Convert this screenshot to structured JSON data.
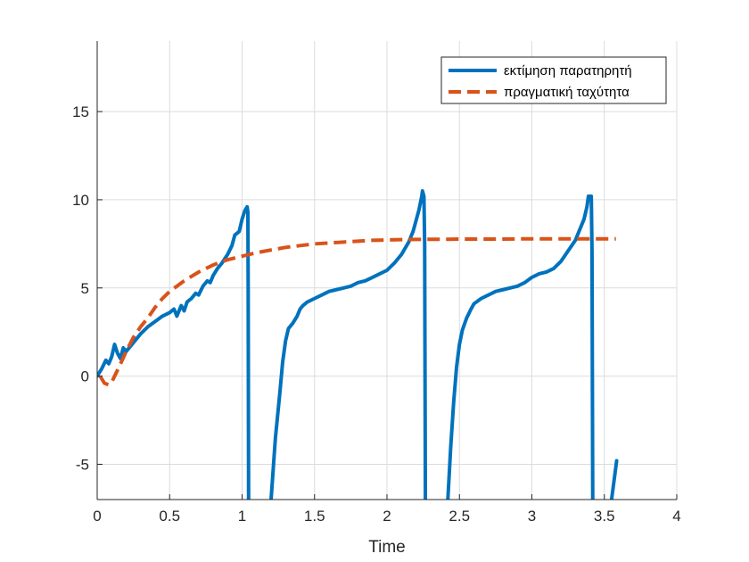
{
  "chart_data": {
    "type": "line",
    "title": "",
    "xlabel": "Time",
    "ylabel": "",
    "xlim": [
      0,
      4
    ],
    "ylim": [
      -7,
      19
    ],
    "xticks": [
      0,
      0.5,
      1,
      1.5,
      2,
      2.5,
      3,
      3.5,
      4
    ],
    "xtick_labels": [
      "0",
      "0.5",
      "1",
      "1.5",
      "2",
      "2.5",
      "3",
      "3.5",
      "4"
    ],
    "yticks": [
      -5,
      0,
      5,
      10,
      15
    ],
    "ytick_labels": [
      "-5",
      "0",
      "5",
      "10",
      "15"
    ],
    "grid": true,
    "legend_position": "top-right",
    "colors": {
      "estimate": "#0072BD",
      "actual": "#D95319",
      "grid": "#dcdcdc",
      "axis": "#262626"
    },
    "series": [
      {
        "name": "εκτίμηση παρατηρητή",
        "style": "solid",
        "color": "#0072BD",
        "segments": [
          [
            [
              0.0,
              0.0
            ],
            [
              0.03,
              0.4
            ],
            [
              0.06,
              0.9
            ],
            [
              0.08,
              0.7
            ],
            [
              0.1,
              1.1
            ],
            [
              0.12,
              1.8
            ],
            [
              0.14,
              1.3
            ],
            [
              0.16,
              1.0
            ],
            [
              0.18,
              1.6
            ],
            [
              0.2,
              1.4
            ],
            [
              0.25,
              1.9
            ],
            [
              0.3,
              2.4
            ],
            [
              0.35,
              2.8
            ],
            [
              0.4,
              3.1
            ],
            [
              0.45,
              3.4
            ],
            [
              0.5,
              3.6
            ],
            [
              0.53,
              3.8
            ],
            [
              0.55,
              3.4
            ],
            [
              0.58,
              4.0
            ],
            [
              0.6,
              3.7
            ],
            [
              0.62,
              4.2
            ],
            [
              0.65,
              4.4
            ],
            [
              0.68,
              4.7
            ],
            [
              0.7,
              4.6
            ],
            [
              0.73,
              5.1
            ],
            [
              0.76,
              5.4
            ],
            [
              0.78,
              5.3
            ],
            [
              0.8,
              5.7
            ],
            [
              0.83,
              6.1
            ],
            [
              0.86,
              6.4
            ],
            [
              0.9,
              6.9
            ],
            [
              0.93,
              7.4
            ],
            [
              0.95,
              8.0
            ],
            [
              0.98,
              8.2
            ],
            [
              1.0,
              8.9
            ],
            [
              1.02,
              9.4
            ],
            [
              1.035,
              9.6
            ],
            [
              1.04,
              9.3
            ],
            [
              1.042,
              5.0
            ],
            [
              1.045,
              -7.0
            ]
          ],
          [
            [
              1.2,
              -7.0
            ],
            [
              1.23,
              -3.5
            ],
            [
              1.26,
              -1.0
            ],
            [
              1.28,
              0.8
            ],
            [
              1.3,
              2.0
            ],
            [
              1.32,
              2.7
            ],
            [
              1.35,
              3.0
            ],
            [
              1.38,
              3.4
            ],
            [
              1.4,
              3.8
            ],
            [
              1.42,
              4.0
            ],
            [
              1.45,
              4.2
            ],
            [
              1.5,
              4.4
            ],
            [
              1.55,
              4.6
            ],
            [
              1.6,
              4.8
            ],
            [
              1.65,
              4.9
            ],
            [
              1.7,
              5.0
            ],
            [
              1.75,
              5.1
            ],
            [
              1.8,
              5.3
            ],
            [
              1.85,
              5.4
            ],
            [
              1.9,
              5.6
            ],
            [
              1.95,
              5.8
            ],
            [
              2.0,
              6.0
            ],
            [
              2.05,
              6.4
            ],
            [
              2.1,
              6.9
            ],
            [
              2.15,
              7.6
            ],
            [
              2.18,
              8.2
            ],
            [
              2.2,
              8.8
            ],
            [
              2.22,
              9.4
            ],
            [
              2.24,
              10.2
            ],
            [
              2.245,
              10.5
            ],
            [
              2.255,
              10.2
            ],
            [
              2.26,
              7.5
            ],
            [
              2.265,
              -7.0
            ]
          ],
          [
            [
              2.42,
              -7.0
            ],
            [
              2.44,
              -4.0
            ],
            [
              2.46,
              -1.5
            ],
            [
              2.48,
              0.5
            ],
            [
              2.5,
              1.8
            ],
            [
              2.52,
              2.6
            ],
            [
              2.55,
              3.3
            ],
            [
              2.58,
              3.8
            ],
            [
              2.6,
              4.1
            ],
            [
              2.65,
              4.4
            ],
            [
              2.7,
              4.6
            ],
            [
              2.75,
              4.8
            ],
            [
              2.8,
              4.9
            ],
            [
              2.85,
              5.0
            ],
            [
              2.9,
              5.1
            ],
            [
              2.95,
              5.3
            ],
            [
              3.0,
              5.6
            ],
            [
              3.05,
              5.8
            ],
            [
              3.1,
              5.9
            ],
            [
              3.15,
              6.1
            ],
            [
              3.2,
              6.5
            ],
            [
              3.25,
              7.1
            ],
            [
              3.3,
              7.7
            ],
            [
              3.33,
              8.3
            ],
            [
              3.36,
              8.9
            ],
            [
              3.38,
              9.6
            ],
            [
              3.39,
              10.2
            ],
            [
              3.41,
              10.2
            ],
            [
              3.415,
              7.0
            ],
            [
              3.42,
              -7.0
            ]
          ],
          [
            [
              3.55,
              -7.0
            ],
            [
              3.585,
              -4.8
            ]
          ]
        ]
      },
      {
        "name": "πραγματική ταχύτητα",
        "style": "dashed",
        "color": "#D95319",
        "points": [
          [
            0.02,
            0.0
          ],
          [
            0.05,
            -0.4
          ],
          [
            0.08,
            -0.5
          ],
          [
            0.1,
            -0.35
          ],
          [
            0.12,
            0.0
          ],
          [
            0.15,
            0.5
          ],
          [
            0.2,
            1.4
          ],
          [
            0.25,
            2.2
          ],
          [
            0.3,
            2.8
          ],
          [
            0.35,
            3.3
          ],
          [
            0.4,
            3.9
          ],
          [
            0.45,
            4.4
          ],
          [
            0.5,
            4.8
          ],
          [
            0.6,
            5.4
          ],
          [
            0.7,
            5.9
          ],
          [
            0.8,
            6.3
          ],
          [
            0.9,
            6.6
          ],
          [
            1.0,
            6.8
          ],
          [
            1.1,
            7.0
          ],
          [
            1.2,
            7.15
          ],
          [
            1.3,
            7.3
          ],
          [
            1.4,
            7.4
          ],
          [
            1.5,
            7.5
          ],
          [
            1.6,
            7.55
          ],
          [
            1.7,
            7.6
          ],
          [
            1.8,
            7.65
          ],
          [
            1.9,
            7.7
          ],
          [
            2.0,
            7.72
          ],
          [
            2.1,
            7.74
          ],
          [
            2.2,
            7.75
          ],
          [
            2.3,
            7.76
          ],
          [
            2.4,
            7.76
          ],
          [
            2.5,
            7.77
          ],
          [
            2.6,
            7.77
          ],
          [
            2.7,
            7.77
          ],
          [
            2.8,
            7.77
          ],
          [
            2.9,
            7.78
          ],
          [
            3.0,
            7.78
          ],
          [
            3.1,
            7.78
          ],
          [
            3.2,
            7.78
          ],
          [
            3.3,
            7.78
          ],
          [
            3.4,
            7.78
          ],
          [
            3.5,
            7.78
          ],
          [
            3.58,
            7.78
          ]
        ]
      }
    ]
  }
}
